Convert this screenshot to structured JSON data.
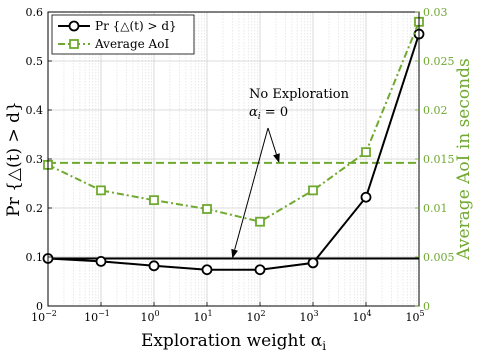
{
  "chart_data": {
    "type": "line",
    "x": [
      0.01,
      0.1,
      1,
      10,
      100,
      1000,
      10000,
      100000
    ],
    "x_tick_labels": [
      "10",
      "10",
      "10",
      "10",
      "10",
      "10",
      "10",
      "10"
    ],
    "x_tick_exponents": [
      "−2",
      "−1",
      "0",
      "1",
      "2",
      "3",
      "4",
      "5"
    ],
    "xlabel": "Exploration weight α",
    "xlabel_sub": "i",
    "xscale": "log",
    "xlim": [
      0.01,
      100000
    ],
    "ylabel": "Pr {△(t) > d}",
    "ylim": [
      0,
      0.6
    ],
    "y_ticks": [
      0,
      0.1,
      0.2,
      0.3,
      0.4,
      0.5,
      0.6
    ],
    "y_tick_labels": [
      "0",
      "0.1",
      "0.2",
      "0.3",
      "0.4",
      "0.5",
      "0.6"
    ],
    "ylabel_right": "Average AoI in seconds",
    "ylim_right": [
      0,
      0.03
    ],
    "y_ticks_right": [
      0,
      0.005,
      0.01,
      0.015,
      0.02,
      0.025,
      0.03
    ],
    "y_tick_labels_right": [
      "0",
      "0.005",
      "0.01",
      "0.015",
      "0.02",
      "0.025",
      "0.03"
    ],
    "grid": true,
    "legend_position": "top-left",
    "series": [
      {
        "name": "Pr {△(t) > d}",
        "axis": "left",
        "color": "#000000",
        "marker": "circle",
        "values": [
          0.097,
          0.091,
          0.082,
          0.074,
          0.074,
          0.088,
          0.222,
          0.555
        ]
      },
      {
        "name": "Average AoI",
        "axis": "right",
        "color": "#6fa92f",
        "marker": "square",
        "linestyle": "dash-dot",
        "values": [
          0.0144,
          0.0118,
          0.0108,
          0.0099,
          0.0086,
          0.0118,
          0.0157,
          0.029
        ]
      }
    ],
    "reference_lines": [
      {
        "axis": "left",
        "value": 0.097,
        "color": "#000000"
      },
      {
        "axis": "right",
        "value": 0.0146,
        "color": "#6fa92f",
        "linestyle": "dashed"
      }
    ],
    "annotation": {
      "line1": "No Exploration",
      "line2_var": "α",
      "line2_sub": "i",
      "line2_rest": " = 0",
      "arrows_to": [
        {
          "axis": "left",
          "x": 30,
          "y": 0.097
        },
        {
          "axis": "right",
          "x": 230,
          "y": 0.0146
        }
      ]
    }
  }
}
